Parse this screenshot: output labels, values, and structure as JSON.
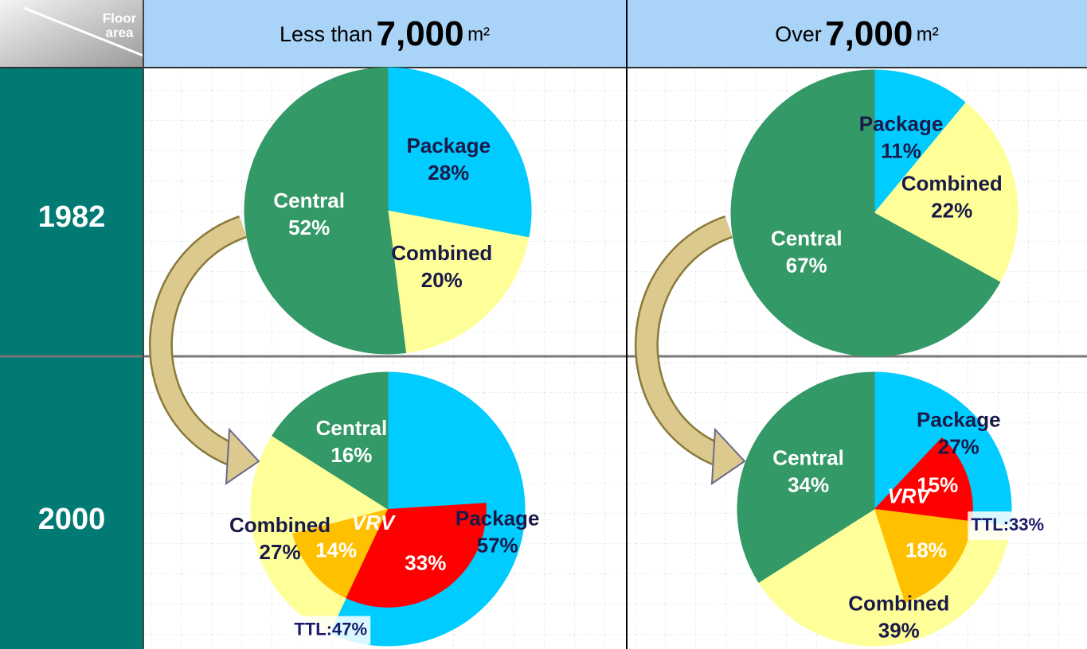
{
  "corner": [
    "Floor",
    "area"
  ],
  "columns": [
    {
      "prefix": "Less than",
      "area": "7,000",
      "unit": "m²"
    },
    {
      "prefix": "Over",
      "area": "7,000",
      "unit": "m²"
    }
  ],
  "rows": [
    "1982",
    "2000"
  ],
  "chart_data": [
    {
      "type": "pie",
      "slices": [
        {
          "name": "Package",
          "value": 28,
          "value_label": "28%",
          "color": "#00ccff"
        },
        {
          "name": "Combined",
          "value": 20,
          "value_label": "20%",
          "color": "#ffff99"
        },
        {
          "name": "Central",
          "value": 52,
          "value_label": "52%",
          "color": "#339966"
        }
      ]
    },
    {
      "type": "pie",
      "slices": [
        {
          "name": "Package",
          "value": 11,
          "value_label": "11%",
          "color": "#00ccff"
        },
        {
          "name": "Combined",
          "value": 22,
          "value_label": "22%",
          "color": "#ffff99"
        },
        {
          "name": "Central",
          "value": 67,
          "value_label": "67%",
          "color": "#339966"
        }
      ]
    },
    {
      "type": "pie",
      "slices": [
        {
          "name": "Package",
          "value": 57,
          "value_label": "57%",
          "color": "#00ccff"
        },
        {
          "name": "Combined",
          "value": 27,
          "value_label": "27%",
          "color": "#ffff99"
        },
        {
          "name": "Central",
          "value": 16,
          "value_label": "16%",
          "color": "#339966"
        }
      ],
      "vrv": {
        "label": "VRV",
        "values": [
          33,
          14
        ],
        "value_labels": [
          "33%",
          "14%"
        ],
        "colors": [
          "#ff0000",
          "#ffc000"
        ],
        "total_label": "TTL:47%"
      }
    },
    {
      "type": "pie",
      "slices": [
        {
          "name": "Package",
          "value": 27,
          "value_label": "27%",
          "color": "#00ccff"
        },
        {
          "name": "Combined",
          "value": 39,
          "value_label": "39%",
          "color": "#ffff99"
        },
        {
          "name": "Central",
          "value": 34,
          "value_label": "34%",
          "color": "#339966"
        }
      ],
      "vrv": {
        "label": "VRV",
        "values": [
          15,
          18
        ],
        "value_labels": [
          "15%",
          "18%"
        ],
        "colors": [
          "#ff0000",
          "#ffc000"
        ],
        "total_label": "TTL:33%"
      }
    }
  ]
}
